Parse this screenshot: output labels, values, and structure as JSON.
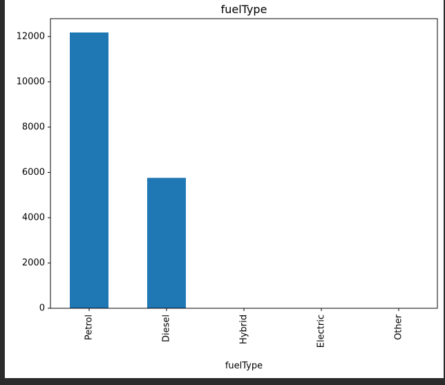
{
  "chart_data": {
    "type": "bar",
    "title": "fuelType",
    "xlabel": "fuelType",
    "ylabel": "",
    "categories": [
      "Petrol",
      "Diesel",
      "Hybrid",
      "Electric",
      "Other"
    ],
    "values": [
      12180,
      5760,
      0,
      0,
      0
    ],
    "ylim": [
      0,
      12790
    ],
    "yticks": [
      0,
      2000,
      4000,
      6000,
      8000,
      10000,
      12000
    ],
    "grid": false,
    "legend": "none",
    "bar_color": "#1f77b4"
  }
}
